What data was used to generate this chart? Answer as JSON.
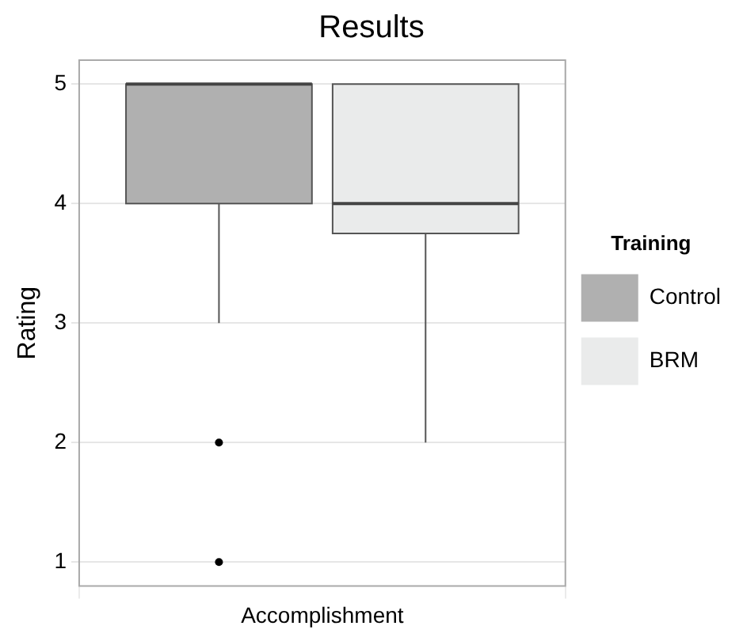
{
  "chart_data": {
    "type": "box",
    "title": "Results",
    "ylabel": "Rating",
    "categories": [
      "Accomplishment"
    ],
    "legend_title": "Training",
    "legend": "right",
    "grid": true,
    "ylim": [
      0.8,
      5.2
    ],
    "yticks": [
      1,
      2,
      3,
      4,
      5
    ],
    "series": [
      {
        "name": "Control",
        "color": "#b0b0b0",
        "boxes": [
          {
            "low": 3,
            "q1": 4,
            "median": 5,
            "q3": 5,
            "high": 5,
            "outliers": [
              2,
              1
            ]
          }
        ]
      },
      {
        "name": "BRM",
        "color": "#eaebeb",
        "boxes": [
          {
            "low": 2,
            "q1": 3.75,
            "median": 4,
            "q3": 5,
            "high": 5
          }
        ]
      }
    ]
  }
}
